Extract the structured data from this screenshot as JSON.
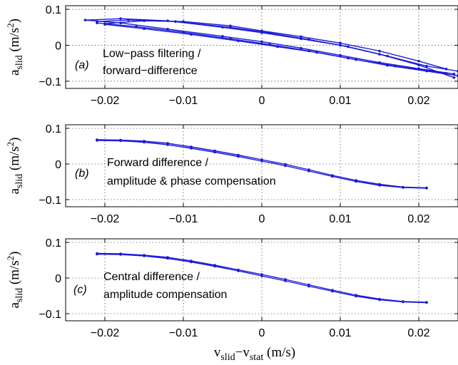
{
  "chart_data": [
    {
      "type": "line",
      "panel_tag": "(a)",
      "annotation": [
        "Low−pass filtering /",
        "forward−difference"
      ],
      "ylabel_main": "a",
      "ylabel_sub": "slid",
      "ylabel_unit": " (m/s",
      "ylabel_exp": "2",
      "ylabel_close": ")",
      "xlim": [
        -0.025,
        0.025
      ],
      "ylim": [
        -0.12,
        0.11
      ],
      "xticks": [
        -0.02,
        -0.01,
        0,
        0.01,
        0.02
      ],
      "xtick_labels": [
        "−0.02",
        "−0.01",
        "0",
        "0.01",
        "0.02"
      ],
      "yticks": [
        0.1,
        0,
        -0.1
      ],
      "ytick_labels": [
        "0.1",
        "0",
        "−0.1"
      ],
      "grid": true,
      "color": "#1a1ad8",
      "series": [
        {
          "x": [
            -0.0225,
            -0.018,
            -0.012,
            -0.005,
            0.0,
            0.005,
            0.01,
            0.015,
            0.02,
            0.0245
          ],
          "y": [
            0.07,
            0.074,
            0.068,
            0.05,
            0.035,
            0.018,
            0.0,
            -0.025,
            -0.055,
            -0.09
          ]
        },
        {
          "x": [
            -0.0225,
            -0.018,
            -0.012,
            -0.005,
            0.0,
            0.005,
            0.01,
            0.015,
            0.02,
            0.0245
          ],
          "y": [
            0.07,
            0.062,
            0.045,
            0.025,
            0.01,
            -0.008,
            -0.028,
            -0.048,
            -0.065,
            -0.08
          ]
        },
        {
          "x": [
            -0.021,
            -0.017,
            -0.011,
            -0.004,
            0.001,
            0.006,
            0.011,
            0.016,
            0.021,
            0.025
          ],
          "y": [
            0.066,
            0.07,
            0.066,
            0.05,
            0.034,
            0.016,
            -0.004,
            -0.03,
            -0.058,
            -0.072
          ]
        },
        {
          "x": [
            -0.021,
            -0.016,
            -0.01,
            -0.004,
            0.001,
            0.006,
            0.011,
            0.016,
            0.021,
            0.025
          ],
          "y": [
            0.062,
            0.052,
            0.036,
            0.018,
            0.002,
            -0.016,
            -0.036,
            -0.056,
            -0.072,
            -0.085
          ]
        },
        {
          "x": [
            -0.02,
            -0.015,
            -0.01,
            -0.004,
            0.0,
            0.005,
            0.01,
            0.015,
            0.02,
            0.0235
          ],
          "y": [
            0.06,
            0.068,
            0.066,
            0.054,
            0.04,
            0.024,
            0.006,
            -0.016,
            -0.044,
            -0.066
          ]
        },
        {
          "x": [
            -0.02,
            -0.015,
            -0.009,
            -0.003,
            0.002,
            0.007,
            0.012,
            0.017,
            0.021,
            0.0235
          ],
          "y": [
            0.058,
            0.046,
            0.03,
            0.012,
            -0.004,
            -0.02,
            -0.04,
            -0.058,
            -0.07,
            -0.078
          ]
        }
      ]
    },
    {
      "type": "line",
      "panel_tag": "(b)",
      "annotation": [
        "Forward difference /",
        "amplitude & phase compensation"
      ],
      "ylabel_main": "a",
      "ylabel_sub": "slid",
      "ylabel_unit": " (m/s",
      "ylabel_exp": "2",
      "ylabel_close": ")",
      "xlim": [
        -0.025,
        0.025
      ],
      "ylim": [
        -0.12,
        0.11
      ],
      "xticks": [
        -0.02,
        -0.01,
        0,
        0.01,
        0.02
      ],
      "xtick_labels": [
        "−0.02",
        "−0.01",
        "0",
        "0.01",
        "0.02"
      ],
      "yticks": [
        0.1,
        0,
        -0.1
      ],
      "ytick_labels": [
        "0.1",
        "0",
        "−0.1"
      ],
      "grid": true,
      "color": "#1a1ad8",
      "series": [
        {
          "x": [
            -0.021,
            -0.018,
            -0.015,
            -0.012,
            -0.009,
            -0.006,
            -0.003,
            0.0,
            0.003,
            0.006,
            0.009,
            0.012,
            0.015,
            0.018,
            0.021
          ],
          "y": [
            0.068,
            0.067,
            0.064,
            0.058,
            0.048,
            0.037,
            0.025,
            0.012,
            -0.001,
            -0.016,
            -0.032,
            -0.046,
            -0.057,
            -0.065,
            -0.067
          ]
        },
        {
          "x": [
            -0.021,
            -0.018,
            -0.015,
            -0.012,
            -0.009,
            -0.006,
            -0.003,
            0.0,
            0.003,
            0.006,
            0.009,
            0.012,
            0.015,
            0.018,
            0.021
          ],
          "y": [
            0.066,
            0.065,
            0.061,
            0.054,
            0.044,
            0.033,
            0.021,
            0.008,
            -0.005,
            -0.02,
            -0.035,
            -0.049,
            -0.06,
            -0.066,
            -0.068
          ]
        }
      ]
    },
    {
      "type": "line",
      "panel_tag": "(c)",
      "annotation": [
        "Central difference /",
        "amplitude compensation"
      ],
      "ylabel_main": "a",
      "ylabel_sub": "slid",
      "ylabel_unit": " (m/s",
      "ylabel_exp": "2",
      "ylabel_close": ")",
      "xlabel_a": "v",
      "xlabel_a_sub": "slid",
      "xlabel_minus": "−",
      "xlabel_b": "v",
      "xlabel_b_sub": "stat",
      "xlabel_unit": " (m/s)",
      "xlim": [
        -0.025,
        0.025
      ],
      "ylim": [
        -0.12,
        0.11
      ],
      "xticks": [
        -0.02,
        -0.01,
        0,
        0.01,
        0.02
      ],
      "xtick_labels": [
        "−0.02",
        "−0.01",
        "0",
        "0.01",
        "0.02"
      ],
      "yticks": [
        0.1,
        0,
        -0.1
      ],
      "ytick_labels": [
        "0.1",
        "0",
        "−0.1"
      ],
      "grid": true,
      "color": "#1a1ad8",
      "series": [
        {
          "x": [
            -0.021,
            -0.018,
            -0.015,
            -0.012,
            -0.009,
            -0.006,
            -0.003,
            0.0,
            0.003,
            0.006,
            0.009,
            0.012,
            0.015,
            0.018,
            0.021
          ],
          "y": [
            0.069,
            0.068,
            0.064,
            0.058,
            0.048,
            0.036,
            0.023,
            0.01,
            -0.004,
            -0.019,
            -0.034,
            -0.048,
            -0.059,
            -0.066,
            -0.068
          ]
        },
        {
          "x": [
            -0.021,
            -0.018,
            -0.015,
            -0.012,
            -0.009,
            -0.006,
            -0.003,
            0.0,
            0.003,
            0.006,
            0.009,
            0.012,
            0.015,
            0.018,
            0.021
          ],
          "y": [
            0.067,
            0.066,
            0.062,
            0.055,
            0.045,
            0.033,
            0.02,
            0.006,
            -0.008,
            -0.023,
            -0.037,
            -0.051,
            -0.061,
            -0.067,
            -0.069
          ]
        }
      ]
    }
  ]
}
